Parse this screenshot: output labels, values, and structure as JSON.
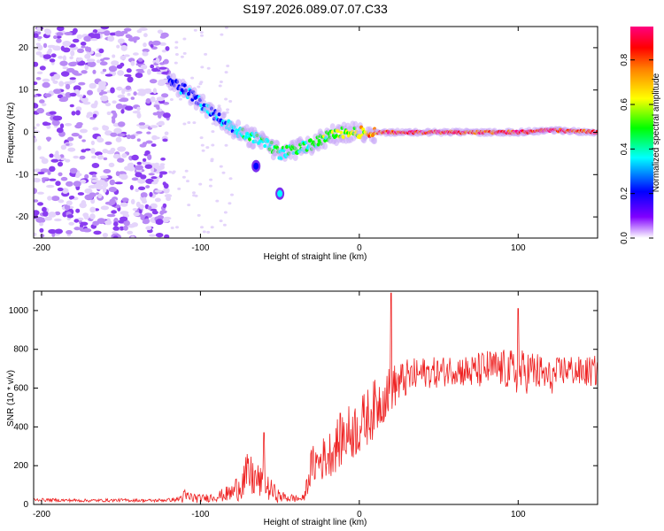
{
  "title": "S197.2026.089.07.07.C33",
  "chart_data": [
    {
      "type": "heatmap",
      "name": "spectrogram",
      "xlabel": "Height of straight line (km)",
      "ylabel": "Frequency (Hz)",
      "xlim": [
        -205,
        150
      ],
      "ylim": [
        -25,
        25
      ],
      "xticks": [
        -200,
        -100,
        0,
        100
      ],
      "yticks": [
        -20,
        -10,
        0,
        10,
        20
      ],
      "colorbar": {
        "label": "Normalized spectral amplitude",
        "range": [
          0,
          0.95
        ],
        "ticks": [
          0.0,
          0.2,
          0.4,
          0.6,
          0.8
        ],
        "colors": [
          "#ffffff",
          "#8000ff",
          "#0000ff",
          "#00ffff",
          "#00ff00",
          "#ffff00",
          "#ff8000",
          "#ff0000",
          "#ff0080"
        ]
      },
      "noise_region_x": [
        -205,
        -120
      ],
      "ridge": {
        "x": [
          -120,
          -110,
          -100,
          -90,
          -80,
          -70,
          -60,
          -50,
          -40,
          -30,
          -20,
          -10,
          0,
          10,
          20,
          40,
          60,
          80,
          100,
          120,
          150
        ],
        "freq": [
          12,
          10,
          7,
          4,
          1,
          -1,
          -2,
          -5,
          -4,
          -3,
          -1,
          0,
          0,
          0,
          0,
          0,
          0,
          0,
          0,
          0.5,
          0
        ],
        "amplitude": [
          0.2,
          0.25,
          0.25,
          0.25,
          0.3,
          0.35,
          0.35,
          0.4,
          0.4,
          0.45,
          0.45,
          0.5,
          0.55,
          0.75,
          0.85,
          0.85,
          0.85,
          0.8,
          0.85,
          0.85,
          0.8
        ]
      },
      "secondary_features": [
        {
          "x": -65,
          "freq": -8,
          "amplitude": 0.2
        },
        {
          "x": -50,
          "freq": -14.5,
          "amplitude": 0.25
        }
      ]
    },
    {
      "type": "line",
      "name": "snr",
      "xlabel": "Height of straight line (km)",
      "ylabel": "SNR (10 * v/v)",
      "xlim": [
        -205,
        150
      ],
      "ylim": [
        0,
        1100
      ],
      "xticks": [
        -200,
        -100,
        0,
        100
      ],
      "yticks": [
        0,
        200,
        400,
        600,
        800,
        1000
      ],
      "color": "#ee2222",
      "series": [
        {
          "name": "SNR",
          "x": [
            -205,
            -190,
            -170,
            -150,
            -130,
            -115,
            -110,
            -100,
            -90,
            -80,
            -70,
            -60,
            -50,
            -40,
            -35,
            -30,
            -20,
            -10,
            0,
            10,
            20,
            30,
            40,
            50,
            60,
            70,
            80,
            90,
            100,
            110,
            120,
            130,
            140,
            150
          ],
          "y": [
            25,
            22,
            20,
            22,
            20,
            25,
            40,
            30,
            40,
            60,
            150,
            100,
            40,
            30,
            30,
            200,
            250,
            350,
            400,
            500,
            600,
            650,
            680,
            680,
            700,
            680,
            700,
            700,
            680,
            690,
            650,
            700,
            680,
            690
          ],
          "noise_amplitude": [
            8,
            8,
            8,
            8,
            8,
            10,
            40,
            20,
            25,
            50,
            120,
            80,
            30,
            20,
            20,
            100,
            120,
            150,
            150,
            150,
            120,
            100,
            80,
            80,
            80,
            90,
            100,
            100,
            120,
            110,
            90,
            80,
            80,
            80
          ],
          "peaks": [
            {
              "x": 20,
              "y": 1090
            },
            {
              "x": 100,
              "y": 1010
            },
            {
              "x": -60,
              "y": 370
            }
          ]
        }
      ]
    }
  ]
}
